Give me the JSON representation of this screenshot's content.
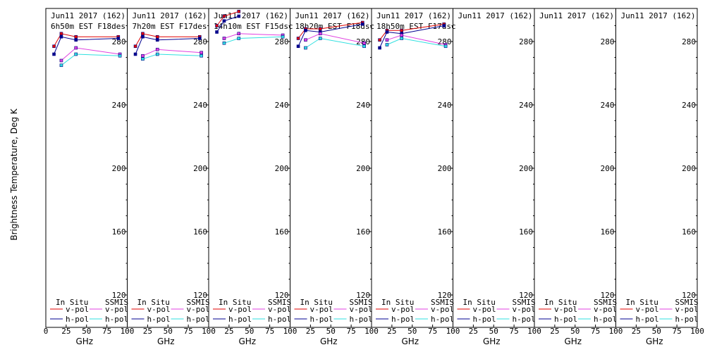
{
  "ylabel": "Brightness Temperature, Deg K",
  "xlabel": "GHz",
  "date_label": "Jun11 2017 (162)",
  "yticks": [
    "120",
    "160",
    "200",
    "240",
    "280"
  ],
  "xticks": [
    "0",
    "25",
    "50",
    "75",
    "100"
  ],
  "legend": {
    "in_situ": "In Situ",
    "ssmis": "SSMIS",
    "vpol": "v-pol",
    "hpol": "h-pol"
  },
  "colors": {
    "insitu_v": "#e00000",
    "insitu_h": "#000090",
    "ssmis_v": "#e040e0",
    "ssmis_h": "#30e0e0"
  },
  "chart_data": [
    {
      "type": "line",
      "title": "Jun11 2017 (162)",
      "subtitle": "6h50m  EST  F18des",
      "xlabel": "GHz",
      "xlim": [
        0,
        100
      ],
      "ylim": [
        110,
        295
      ],
      "series": [
        {
          "name": "In Situ v-pol",
          "points": [
            [
              10,
              277
            ],
            [
              19,
              285
            ],
            [
              37,
              283
            ],
            [
              89,
              283
            ]
          ]
        },
        {
          "name": "In Situ h-pol",
          "points": [
            [
              10,
              272
            ],
            [
              19,
              283
            ],
            [
              37,
              281
            ],
            [
              89,
              282
            ]
          ]
        },
        {
          "name": "SSMIS v-pol",
          "points": [
            [
              19,
              268
            ],
            [
              37,
              276
            ],
            [
              91,
              272
            ]
          ]
        },
        {
          "name": "SSMIS h-pol",
          "points": [
            [
              19,
              265
            ],
            [
              37,
              272
            ],
            [
              91,
              271
            ]
          ]
        }
      ]
    },
    {
      "type": "line",
      "title": "Jun11 2017 (162)",
      "subtitle": "7h20m  EST  F17des",
      "xlabel": "GHz",
      "xlim": [
        0,
        100
      ],
      "ylim": [
        110,
        295
      ],
      "series": [
        {
          "name": "In Situ v-pol",
          "points": [
            [
              10,
              277
            ],
            [
              19,
              285
            ],
            [
              37,
              283
            ],
            [
              89,
              283
            ]
          ]
        },
        {
          "name": "In Situ h-pol",
          "points": [
            [
              10,
              272
            ],
            [
              19,
              283
            ],
            [
              37,
              281
            ],
            [
              89,
              282
            ]
          ]
        },
        {
          "name": "SSMIS v-pol",
          "points": [
            [
              19,
              271
            ],
            [
              37,
              275
            ],
            [
              91,
              273
            ]
          ]
        },
        {
          "name": "SSMIS h-pol",
          "points": [
            [
              19,
              269
            ],
            [
              37,
              272
            ],
            [
              91,
              271
            ]
          ]
        }
      ]
    },
    {
      "type": "line",
      "title": "Jun11 2017 (162)",
      "subtitle": "14h10m  EST  F15dsc",
      "xlabel": "GHz",
      "xlim": [
        0,
        100
      ],
      "ylim": [
        110,
        295
      ],
      "series": [
        {
          "name": "In Situ v-pol",
          "points": [
            [
              10,
              290
            ],
            [
              19,
              296
            ],
            [
              37,
              299
            ]
          ]
        },
        {
          "name": "In Situ h-pol",
          "points": [
            [
              10,
              286
            ],
            [
              19,
              293
            ],
            [
              37,
              296
            ]
          ]
        },
        {
          "name": "SSMIS v-pol",
          "points": [
            [
              19,
              282
            ],
            [
              37,
              285
            ],
            [
              91,
              284
            ]
          ]
        },
        {
          "name": "SSMIS h-pol",
          "points": [
            [
              19,
              279
            ],
            [
              37,
              282
            ],
            [
              91,
              283
            ]
          ]
        }
      ]
    },
    {
      "type": "line",
      "title": "Jun11 2017 (162)",
      "subtitle": "18h20m  EST  F18dsc",
      "xlabel": "GHz",
      "xlim": [
        0,
        100
      ],
      "ylim": [
        110,
        295
      ],
      "series": [
        {
          "name": "In Situ v-pol",
          "points": [
            [
              10,
              282
            ],
            [
              19,
              288
            ],
            [
              37,
              288
            ],
            [
              89,
              292
            ]
          ]
        },
        {
          "name": "In Situ h-pol",
          "points": [
            [
              10,
              277
            ],
            [
              19,
              287
            ],
            [
              37,
              286
            ],
            [
              89,
              291
            ]
          ]
        },
        {
          "name": "SSMIS v-pol",
          "points": [
            [
              19,
              281
            ],
            [
              37,
              285
            ],
            [
              91,
              279
            ]
          ]
        },
        {
          "name": "SSMIS h-pol",
          "points": [
            [
              19,
              276
            ],
            [
              37,
              282
            ],
            [
              91,
              277
            ]
          ]
        }
      ]
    },
    {
      "type": "line",
      "title": "Jun11 2017 (162)",
      "subtitle": "18h50m  EST  F17dsc",
      "xlabel": "GHz",
      "xlim": [
        0,
        100
      ],
      "ylim": [
        110,
        295
      ],
      "series": [
        {
          "name": "In Situ v-pol",
          "points": [
            [
              10,
              281
            ],
            [
              19,
              287
            ],
            [
              37,
              287
            ],
            [
              89,
              291
            ]
          ]
        },
        {
          "name": "In Situ h-pol",
          "points": [
            [
              10,
              276
            ],
            [
              19,
              286
            ],
            [
              37,
              285
            ],
            [
              89,
              290
            ]
          ]
        },
        {
          "name": "SSMIS v-pol",
          "points": [
            [
              19,
              281
            ],
            [
              37,
              284
            ],
            [
              91,
              278
            ]
          ]
        },
        {
          "name": "SSMIS h-pol",
          "points": [
            [
              19,
              278
            ],
            [
              37,
              282
            ],
            [
              91,
              277
            ]
          ]
        }
      ]
    },
    {
      "type": "line",
      "title": "Jun11 2017 (162)",
      "xlabel": "GHz",
      "xlim": [
        0,
        100
      ],
      "ylim": [
        110,
        295
      ],
      "series": []
    },
    {
      "type": "line",
      "title": "Jun11 2017 (162)",
      "xlabel": "GHz",
      "xlim": [
        0,
        100
      ],
      "ylim": [
        110,
        295
      ],
      "series": []
    },
    {
      "type": "line",
      "title": "Jun11 2017 (162)",
      "xlabel": "GHz",
      "xlim": [
        0,
        100
      ],
      "ylim": [
        110,
        295
      ],
      "series": []
    }
  ]
}
